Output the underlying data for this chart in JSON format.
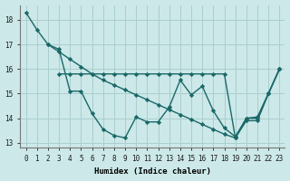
{
  "xlabel": "Humidex (Indice chaleur)",
  "bg_color": "#cce8e8",
  "grid_color": "#aacece",
  "line_color": "#1a6868",
  "xlim": [
    -0.5,
    23.5
  ],
  "ylim": [
    12.8,
    18.6
  ],
  "yticks": [
    13,
    14,
    15,
    16,
    17,
    18
  ],
  "xticks": [
    0,
    1,
    2,
    3,
    4,
    5,
    6,
    7,
    8,
    9,
    10,
    11,
    12,
    13,
    14,
    15,
    16,
    17,
    18,
    19,
    20,
    21,
    22,
    23
  ],
  "series": [
    {
      "x": [
        0,
        1,
        2,
        3,
        4,
        5,
        6,
        7,
        8,
        9,
        10,
        11,
        12,
        13,
        14,
        15,
        16,
        17,
        18,
        19,
        20,
        21,
        22,
        23
      ],
      "y": [
        18.3,
        17.6,
        17.0,
        16.7,
        16.4,
        16.1,
        15.8,
        15.55,
        15.35,
        15.15,
        14.95,
        14.75,
        14.55,
        14.35,
        14.15,
        13.95,
        13.75,
        13.55,
        13.35,
        13.2,
        13.9,
        13.9,
        15.0,
        16.0
      ]
    },
    {
      "x": [
        3,
        4,
        5,
        6,
        7,
        8,
        9,
        10,
        11,
        12,
        13,
        14,
        15,
        16,
        17,
        18,
        19,
        20,
        21,
        22,
        23
      ],
      "y": [
        15.8,
        15.8,
        15.8,
        15.8,
        15.8,
        15.8,
        15.8,
        15.8,
        15.8,
        15.8,
        15.8,
        15.8,
        15.8,
        15.8,
        15.8,
        15.8,
        13.2,
        14.0,
        14.0,
        15.0,
        16.0
      ]
    },
    {
      "x": [
        2,
        3,
        4,
        5,
        6,
        7,
        8,
        9,
        10,
        11,
        12,
        13,
        14,
        15,
        16,
        17,
        18,
        19,
        20,
        21,
        22,
        23
      ],
      "y": [
        17.0,
        16.8,
        15.1,
        15.1,
        14.2,
        13.55,
        13.3,
        13.2,
        14.05,
        13.85,
        13.85,
        14.45,
        15.55,
        14.95,
        15.3,
        14.3,
        13.6,
        13.25,
        14.0,
        14.05,
        15.0,
        16.0
      ]
    }
  ]
}
